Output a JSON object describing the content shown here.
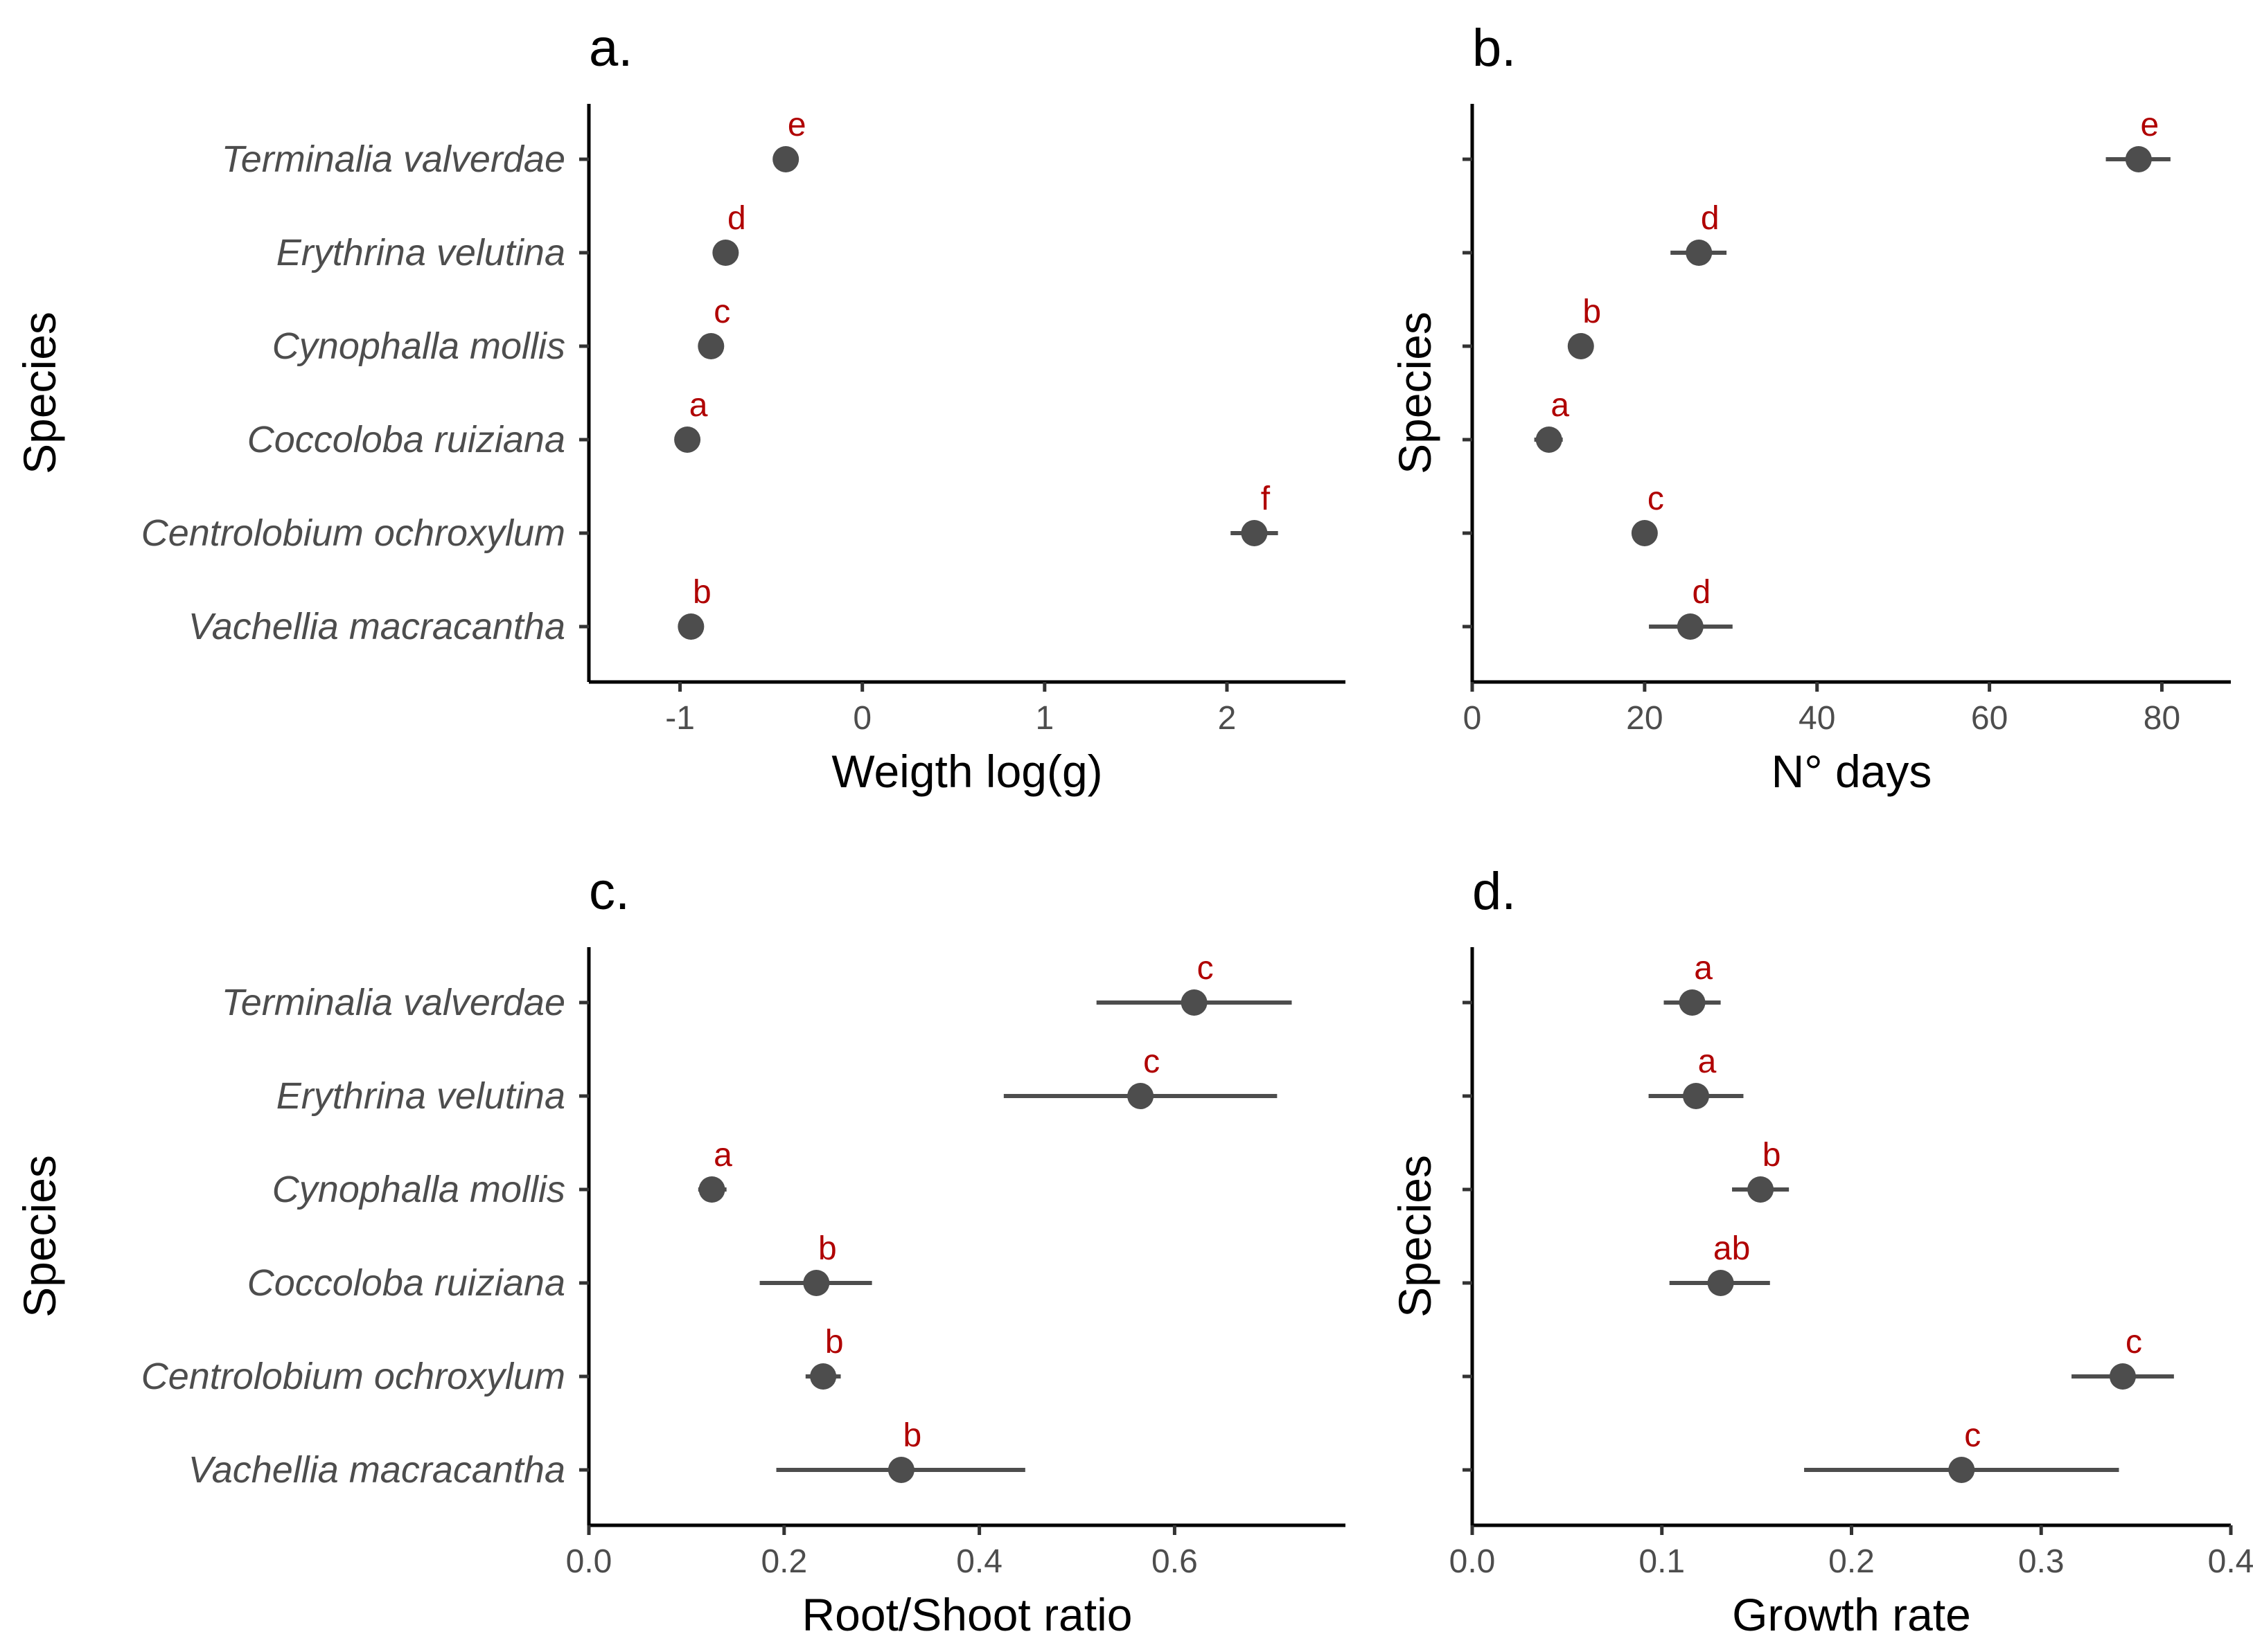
{
  "species": [
    "Terminalia valverdae",
    "Erythrina velutina",
    "Cynophalla mollis",
    "Coccoloba ruiziana",
    "Centrolobium ochroxylum",
    "Vachellia macracantha"
  ],
  "chart_data": [
    {
      "type": "scatter",
      "panel": "a.",
      "xlabel": "Weigth log(g)",
      "ylabel": "Species",
      "xlim": [
        -1.5,
        2.65
      ],
      "xticks": [
        -1,
        0,
        1,
        2
      ],
      "tick_labels": [
        "-1",
        "0",
        "1",
        "2"
      ],
      "show_category_labels": true,
      "points": [
        {
          "species": "Terminalia valverdae",
          "mean": -0.42,
          "lower": -0.44,
          "upper": -0.4,
          "letter": "e"
        },
        {
          "species": "Erythrina velutina",
          "mean": -0.75,
          "lower": -0.77,
          "upper": -0.73,
          "letter": "d"
        },
        {
          "species": "Cynophalla mollis",
          "mean": -0.83,
          "lower": -0.85,
          "upper": -0.81,
          "letter": "c"
        },
        {
          "species": "Coccoloba ruiziana",
          "mean": -0.96,
          "lower": -0.98,
          "upper": -0.94,
          "letter": "a"
        },
        {
          "species": "Centrolobium ochroxylum",
          "mean": 2.15,
          "lower": 2.02,
          "upper": 2.28,
          "letter": "f"
        },
        {
          "species": "Vachellia macracantha",
          "mean": -0.94,
          "lower": -0.96,
          "upper": -0.92,
          "letter": "b"
        }
      ]
    },
    {
      "type": "scatter",
      "panel": "b.",
      "xlabel": "N° days",
      "ylabel": "Species",
      "xlim": [
        0,
        88
      ],
      "xticks": [
        0,
        20,
        40,
        60,
        80
      ],
      "tick_labels": [
        "0",
        "20",
        "40",
        "60",
        "80"
      ],
      "show_category_labels": false,
      "points": [
        {
          "species": "Terminalia valverdae",
          "mean": 77.3,
          "lower": 73.5,
          "upper": 81.0,
          "letter": "e"
        },
        {
          "species": "Erythrina velutina",
          "mean": 26.3,
          "lower": 23.0,
          "upper": 29.5,
          "letter": "d"
        },
        {
          "species": "Cynophalla mollis",
          "mean": 12.6,
          "lower": 12.0,
          "upper": 13.2,
          "letter": "b"
        },
        {
          "species": "Coccoloba ruiziana",
          "mean": 8.9,
          "lower": 7.2,
          "upper": 10.5,
          "letter": "a"
        },
        {
          "species": "Centrolobium ochroxylum",
          "mean": 20.0,
          "lower": 19.5,
          "upper": 20.5,
          "letter": "c"
        },
        {
          "species": "Vachellia macracantha",
          "mean": 25.3,
          "lower": 20.5,
          "upper": 30.2,
          "letter": "d"
        }
      ]
    },
    {
      "type": "scatter",
      "panel": "c.",
      "xlabel": "Root/Shoot ratio",
      "ylabel": "Species",
      "xlim": [
        0,
        0.775
      ],
      "xticks": [
        0,
        0.2,
        0.4,
        0.6
      ],
      "tick_labels": [
        "0.0",
        "0.2",
        "0.4",
        "0.6"
      ],
      "show_category_labels": true,
      "points": [
        {
          "species": "Terminalia valverdae",
          "mean": 0.62,
          "lower": 0.52,
          "upper": 0.72,
          "letter": "c"
        },
        {
          "species": "Erythrina velutina",
          "mean": 0.565,
          "lower": 0.425,
          "upper": 0.705,
          "letter": "c"
        },
        {
          "species": "Cynophalla mollis",
          "mean": 0.126,
          "lower": 0.112,
          "upper": 0.141,
          "letter": "a"
        },
        {
          "species": "Coccoloba ruiziana",
          "mean": 0.233,
          "lower": 0.175,
          "upper": 0.29,
          "letter": "b"
        },
        {
          "species": "Centrolobium ochroxylum",
          "mean": 0.24,
          "lower": 0.222,
          "upper": 0.258,
          "letter": "b"
        },
        {
          "species": "Vachellia macracantha",
          "mean": 0.32,
          "lower": 0.192,
          "upper": 0.447,
          "letter": "b"
        }
      ]
    },
    {
      "type": "scatter",
      "panel": "d.",
      "xlabel": "Growth rate",
      "ylabel": "Species",
      "xlim": [
        0,
        0.4
      ],
      "xticks": [
        0,
        0.1,
        0.2,
        0.3,
        0.4
      ],
      "tick_labels": [
        "0.0",
        "0.1",
        "0.2",
        "0.3",
        "0.4"
      ],
      "show_category_labels": false,
      "points": [
        {
          "species": "Terminalia valverdae",
          "mean": 0.116,
          "lower": 0.101,
          "upper": 0.131,
          "letter": "a"
        },
        {
          "species": "Erythrina velutina",
          "mean": 0.118,
          "lower": 0.093,
          "upper": 0.143,
          "letter": "a"
        },
        {
          "species": "Cynophalla mollis",
          "mean": 0.152,
          "lower": 0.137,
          "upper": 0.167,
          "letter": "b"
        },
        {
          "species": "Coccoloba ruiziana",
          "mean": 0.131,
          "lower": 0.104,
          "upper": 0.157,
          "letter": "ab"
        },
        {
          "species": "Centrolobium ochroxylum",
          "mean": 0.343,
          "lower": 0.316,
          "upper": 0.37,
          "letter": "c"
        },
        {
          "species": "Vachellia macracantha",
          "mean": 0.258,
          "lower": 0.175,
          "upper": 0.341,
          "letter": "c"
        }
      ]
    }
  ]
}
